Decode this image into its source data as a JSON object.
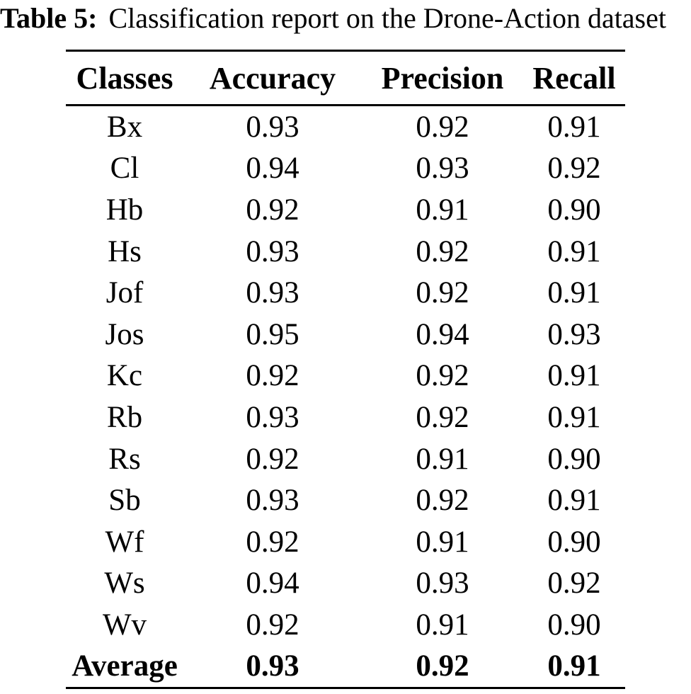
{
  "caption": {
    "label": "Table 5:",
    "text": "Classification report on the Drone-Action dataset"
  },
  "chart_data": {
    "type": "table",
    "title": "Table 5: Classification report on the Drone-Action dataset",
    "columns": [
      "Classes",
      "Accuracy",
      "Precision",
      "Recall"
    ],
    "rows": [
      [
        "Bx",
        "0.93",
        "0.92",
        "0.91"
      ],
      [
        "Cl",
        "0.94",
        "0.93",
        "0.92"
      ],
      [
        "Hb",
        "0.92",
        "0.91",
        "0.90"
      ],
      [
        "Hs",
        "0.93",
        "0.92",
        "0.91"
      ],
      [
        "Jof",
        "0.93",
        "0.92",
        "0.91"
      ],
      [
        "Jos",
        "0.95",
        "0.94",
        "0.93"
      ],
      [
        "Kc",
        "0.92",
        "0.92",
        "0.91"
      ],
      [
        "Rb",
        "0.93",
        "0.92",
        "0.91"
      ],
      [
        "Rs",
        "0.92",
        "0.91",
        "0.90"
      ],
      [
        "Sb",
        "0.93",
        "0.92",
        "0.91"
      ],
      [
        "Wf",
        "0.92",
        "0.91",
        "0.90"
      ],
      [
        "Ws",
        "0.94",
        "0.93",
        "0.92"
      ],
      [
        "Wv",
        "0.92",
        "0.91",
        "0.90"
      ]
    ],
    "footer": [
      "Average",
      "0.93",
      "0.92",
      "0.91"
    ],
    "colors": {
      "text": "#000000",
      "background": "#ffffff",
      "rule": "#000000"
    }
  }
}
